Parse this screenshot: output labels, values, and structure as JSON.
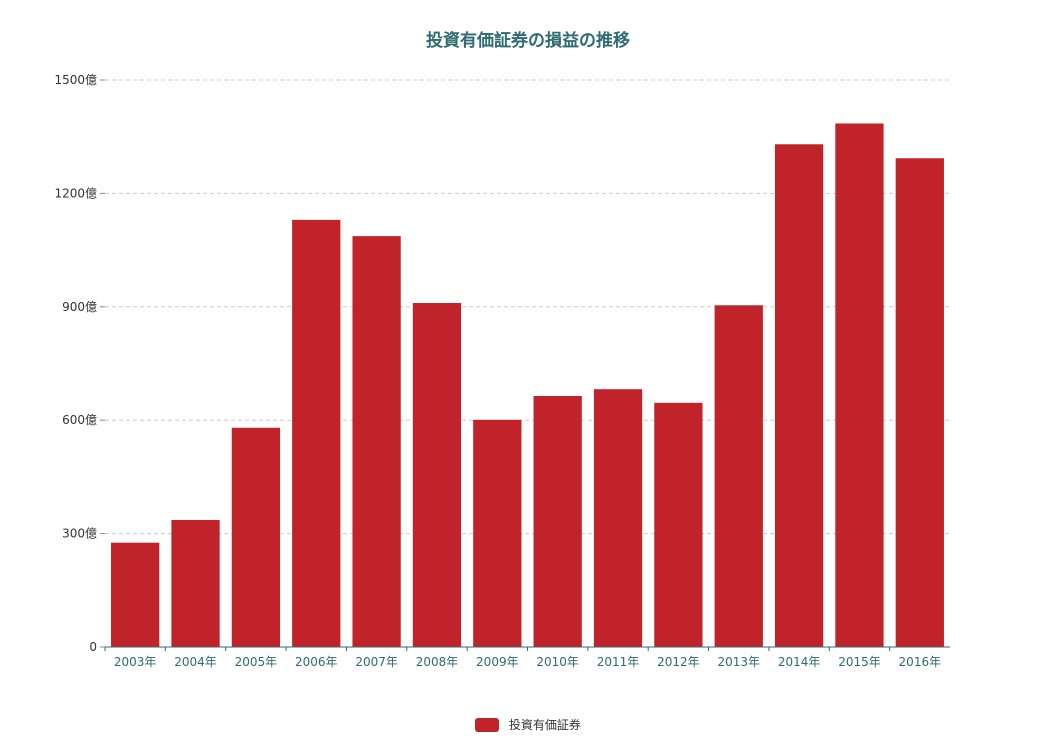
{
  "chart_data": {
    "type": "bar",
    "title": "投資有価証券の損益の推移",
    "categories": [
      "2003年",
      "2004年",
      "2005年",
      "2006年",
      "2007年",
      "2008年",
      "2009年",
      "2010年",
      "2011年",
      "2012年",
      "2013年",
      "2014年",
      "2015年",
      "2016年"
    ],
    "series": [
      {
        "name": "投資有価証券",
        "values": [
          276,
          336,
          580,
          1130,
          1087,
          910,
          601,
          664,
          682,
          646,
          904,
          1330,
          1385,
          1293
        ]
      }
    ],
    "yticks": [
      {
        "value": 0,
        "label": "0"
      },
      {
        "value": 300,
        "label": "300億"
      },
      {
        "value": 600,
        "label": "600億"
      },
      {
        "value": 900,
        "label": "900億"
      },
      {
        "value": 1200,
        "label": "1200億"
      },
      {
        "value": 1500,
        "label": "1500億"
      }
    ],
    "ylim": [
      0,
      1500
    ],
    "grid": true,
    "legend_position": "bottom-center",
    "colors": {
      "bar": "#c1232b",
      "title": "#2e6b72",
      "axis": "#2e6b72",
      "grid": "#cccccc"
    }
  }
}
